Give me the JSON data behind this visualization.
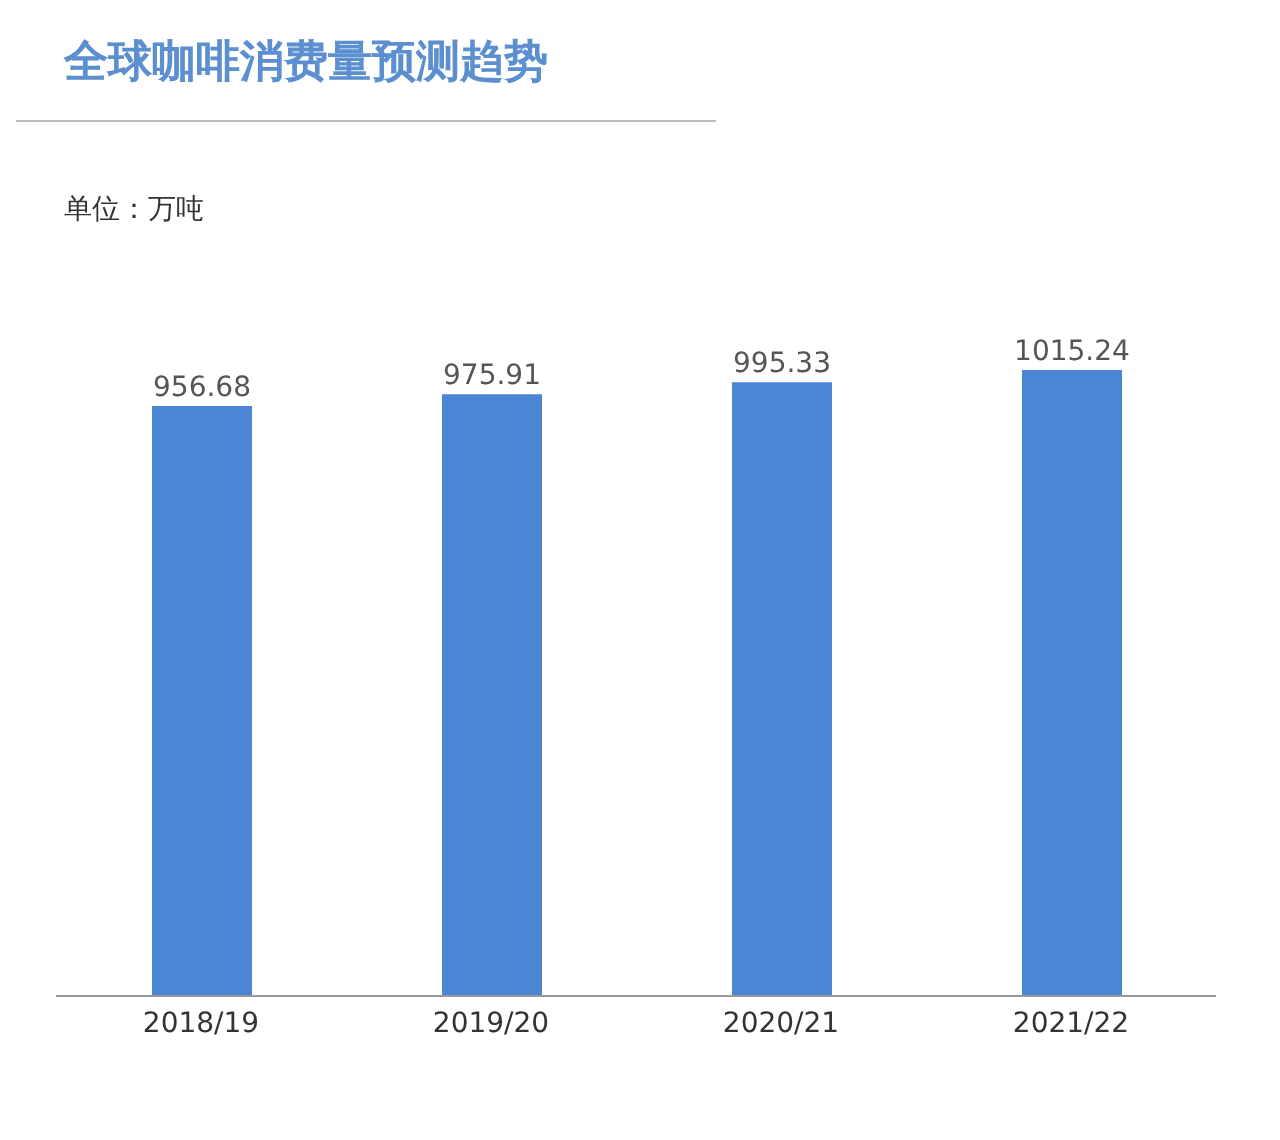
{
  "chart_data": {
    "type": "bar",
    "title": "全球咖啡消费量预测趋势",
    "subtitle": "单位：万吨",
    "categories": [
      "2018/19",
      "2019/20",
      "2020/21",
      "2021/22"
    ],
    "values": [
      956.68,
      975.91,
      995.33,
      1015.24
    ],
    "color": "#4a86d4",
    "data_labels": true
  }
}
